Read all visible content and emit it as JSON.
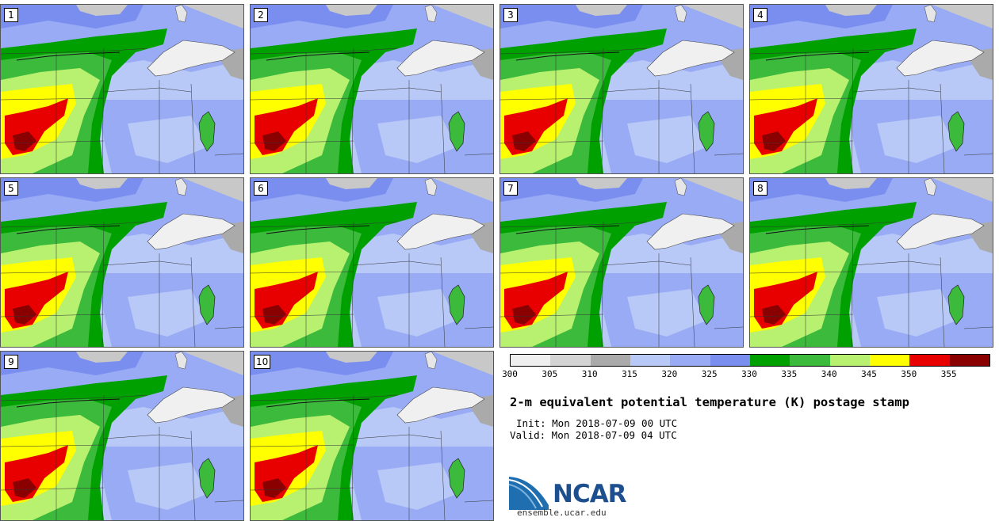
{
  "panels": [
    {
      "label": "1"
    },
    {
      "label": "2"
    },
    {
      "label": "3"
    },
    {
      "label": "4"
    },
    {
      "label": "5"
    },
    {
      "label": "6"
    },
    {
      "label": "7"
    },
    {
      "label": "8"
    },
    {
      "label": "9"
    },
    {
      "label": "10"
    }
  ],
  "legend": {
    "ticks": [
      "300",
      "305",
      "310",
      "315",
      "320",
      "325",
      "330",
      "335",
      "340",
      "345",
      "350",
      "355"
    ],
    "colors": [
      "#efefef",
      "#d4d4d4",
      "#aaaaaa",
      "#b8c8f7",
      "#98abf4",
      "#7a8ef0",
      "#00a000",
      "#3cba3c",
      "#b8f070",
      "#ffff00",
      "#e80000",
      "#8a0000"
    ]
  },
  "title": "2-m equivalent potential temperature (K) postage stamp",
  "init": "Init: Mon 2018-07-09 00 UTC",
  "valid": "Valid: Mon 2018-07-09 04 UTC",
  "logo": {
    "text": "NCAR",
    "site": "ensemble.ucar.edu",
    "blue": "#1f6fb0",
    "navy": "#1d4f8f"
  }
}
